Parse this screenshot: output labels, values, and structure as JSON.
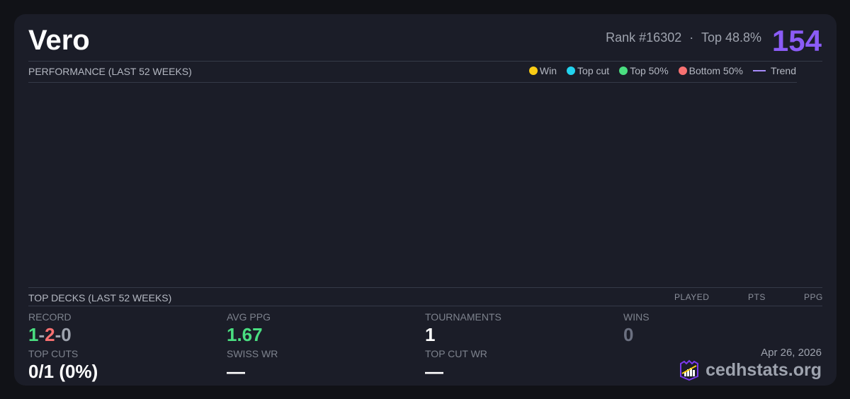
{
  "player": {
    "name": "Vero",
    "rank": "Rank #16302",
    "separator": "·",
    "top_pct": "Top 48.8%",
    "score": "154"
  },
  "performance": {
    "title": "PERFORMANCE (LAST 52 WEEKS)",
    "legend": [
      {
        "label": "Win",
        "color": "#facc15"
      },
      {
        "label": "Top cut",
        "color": "#22d3ee"
      },
      {
        "label": "Top 50%",
        "color": "#4ade80"
      },
      {
        "label": "Bottom 50%",
        "color": "#f87171"
      },
      {
        "label": "Trend",
        "color": "#a78bfa"
      }
    ]
  },
  "top_decks": {
    "title": "TOP DECKS (LAST 52 WEEKS)",
    "columns": [
      "PLAYED",
      "PTS",
      "PPG"
    ]
  },
  "stats": {
    "record": {
      "label": "RECORD",
      "wins": "1",
      "losses": "2",
      "draws": "0",
      "sep": "-"
    },
    "avg_ppg": {
      "label": "AVG PPG",
      "value": "1.67"
    },
    "tournaments": {
      "label": "TOURNAMENTS",
      "value": "1"
    },
    "wins": {
      "label": "WINS",
      "value": "0"
    },
    "top_cuts": {
      "label": "TOP CUTS",
      "value": "0/1 (0%)"
    },
    "swiss_wr": {
      "label": "SWISS WR",
      "value": "—"
    },
    "top_cut_wr": {
      "label": "TOP CUT WR",
      "value": "—"
    }
  },
  "footer": {
    "date": "Apr 26, 2026",
    "brand": "cedhstats.org"
  },
  "colors": {
    "accent": "#8b5cf6",
    "win_green": "#4ade80",
    "loss_red": "#f87171"
  }
}
